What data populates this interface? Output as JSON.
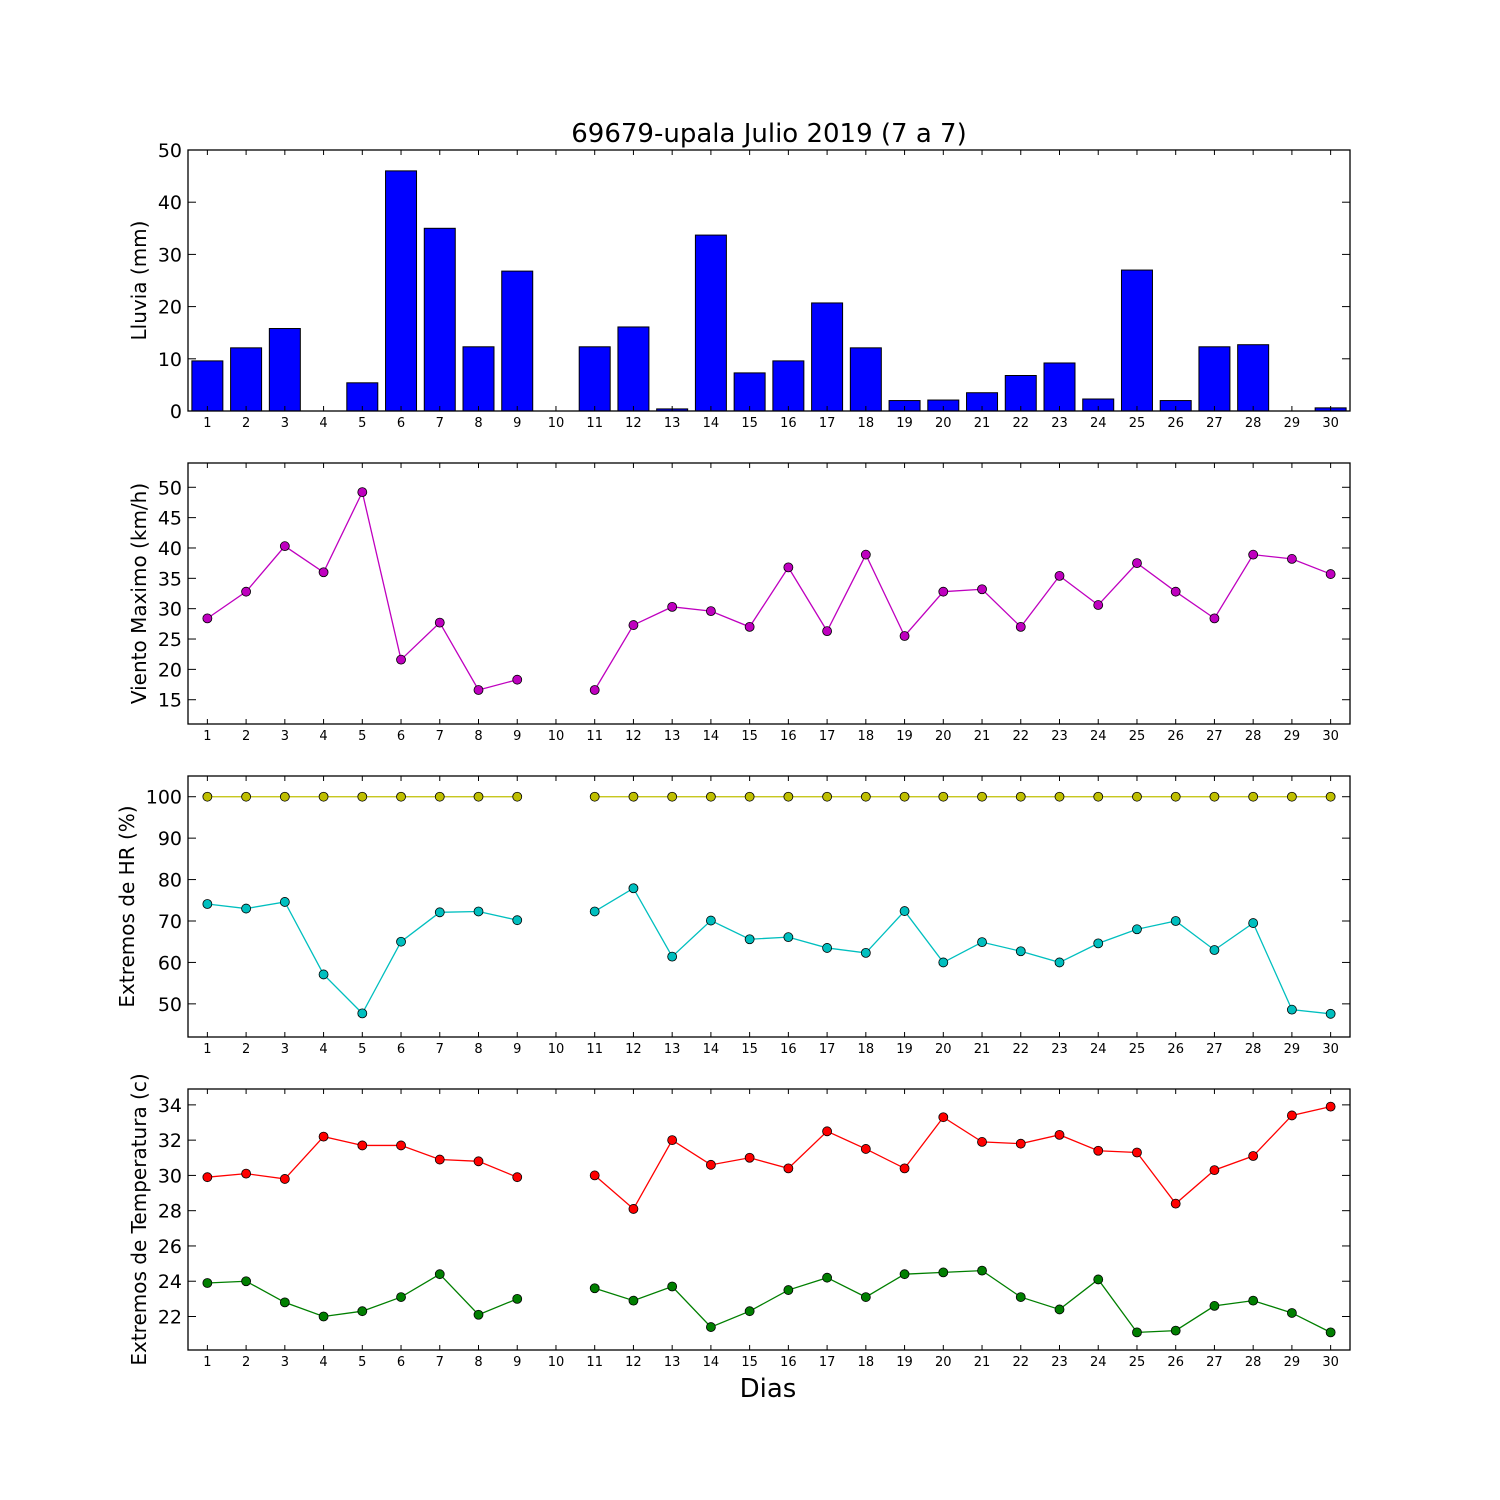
{
  "figure": {
    "title": "69679-upala Julio 2019  (7 a 7)",
    "xlabel": "Dias"
  },
  "chart_data": [
    {
      "type": "bar",
      "ylabel": "Lluvia (mm)",
      "categories": [
        "1",
        "2",
        "3",
        "4",
        "5",
        "6",
        "7",
        "8",
        "9",
        "10",
        "11",
        "12",
        "13",
        "14",
        "15",
        "16",
        "17",
        "18",
        "19",
        "20",
        "21",
        "22",
        "23",
        "24",
        "25",
        "26",
        "27",
        "28",
        "29",
        "30"
      ],
      "ylim": [
        0,
        50
      ],
      "yticks": [
        0,
        10,
        20,
        30,
        40,
        50
      ],
      "grid": false,
      "series": [
        {
          "color": "#0000ff",
          "values": [
            9.6,
            12.1,
            15.8,
            0,
            5.4,
            46.0,
            35.0,
            12.3,
            26.8,
            0,
            12.3,
            16.1,
            0.4,
            33.7,
            7.3,
            9.6,
            20.7,
            12.1,
            2.0,
            2.1,
            3.5,
            6.8,
            9.2,
            2.3,
            27.0,
            2.0,
            12.3,
            12.7,
            0,
            0.6
          ]
        }
      ]
    },
    {
      "type": "line",
      "ylabel": "Viento Maximo (km/h)",
      "categories": [
        "1",
        "2",
        "3",
        "4",
        "5",
        "6",
        "7",
        "8",
        "9",
        "10",
        "11",
        "12",
        "13",
        "14",
        "15",
        "16",
        "17",
        "18",
        "19",
        "20",
        "21",
        "22",
        "23",
        "24",
        "25",
        "26",
        "27",
        "28",
        "29",
        "30"
      ],
      "ylim": [
        11,
        54
      ],
      "yticks": [
        15,
        20,
        25,
        30,
        35,
        40,
        45,
        50
      ],
      "grid": false,
      "series": [
        {
          "color": "#bf00bf",
          "values": [
            28.4,
            32.8,
            40.3,
            36.0,
            49.2,
            21.6,
            27.7,
            16.6,
            18.3,
            null,
            16.6,
            27.3,
            30.3,
            29.6,
            27.0,
            36.8,
            26.3,
            38.9,
            25.5,
            32.8,
            33.2,
            27.0,
            35.4,
            30.6,
            37.5,
            32.8,
            28.4,
            38.9,
            38.2,
            35.7
          ]
        }
      ]
    },
    {
      "type": "line",
      "ylabel": "Extremos de HR (%)",
      "categories": [
        "1",
        "2",
        "3",
        "4",
        "5",
        "6",
        "7",
        "8",
        "9",
        "10",
        "11",
        "12",
        "13",
        "14",
        "15",
        "16",
        "17",
        "18",
        "19",
        "20",
        "21",
        "22",
        "23",
        "24",
        "25",
        "26",
        "27",
        "28",
        "29",
        "30"
      ],
      "ylim": [
        42,
        105
      ],
      "yticks": [
        50,
        60,
        70,
        80,
        90,
        100
      ],
      "grid": false,
      "series": [
        {
          "color": "#bfbf00",
          "values": [
            100,
            100,
            100,
            100,
            100,
            100,
            100,
            100,
            100,
            null,
            100,
            100,
            100,
            100,
            100,
            100,
            100,
            100,
            100,
            100,
            100,
            100,
            100,
            100,
            100,
            100,
            100,
            100,
            100,
            100
          ]
        },
        {
          "color": "#00bfbf",
          "values": [
            74.1,
            73.0,
            74.6,
            57.1,
            47.7,
            65.0,
            72.1,
            72.3,
            70.2,
            null,
            72.3,
            77.9,
            61.4,
            70.1,
            65.6,
            66.1,
            63.5,
            62.3,
            72.4,
            60.0,
            64.9,
            62.7,
            60.0,
            64.6,
            68.0,
            70.0,
            63.0,
            69.5,
            48.6,
            47.6
          ]
        }
      ]
    },
    {
      "type": "line",
      "ylabel": "Extremos de Temperatura (c)",
      "categories": [
        "1",
        "2",
        "3",
        "4",
        "5",
        "6",
        "7",
        "8",
        "9",
        "10",
        "11",
        "12",
        "13",
        "14",
        "15",
        "16",
        "17",
        "18",
        "19",
        "20",
        "21",
        "22",
        "23",
        "24",
        "25",
        "26",
        "27",
        "28",
        "29",
        "30"
      ],
      "ylim": [
        20.1,
        34.9
      ],
      "yticks": [
        22,
        24,
        26,
        28,
        30,
        32,
        34
      ],
      "grid": false,
      "series": [
        {
          "color": "#ff0000",
          "values": [
            29.9,
            30.1,
            29.8,
            32.2,
            31.7,
            31.7,
            30.9,
            30.8,
            29.9,
            null,
            30.0,
            28.1,
            32.0,
            30.6,
            31.0,
            30.4,
            32.5,
            31.5,
            30.4,
            33.3,
            31.9,
            31.8,
            32.3,
            31.4,
            31.3,
            28.4,
            30.3,
            31.1,
            33.4,
            33.9
          ]
        },
        {
          "color": "#007f00",
          "values": [
            23.9,
            24.0,
            22.8,
            22.0,
            22.3,
            23.1,
            24.4,
            22.1,
            23.0,
            null,
            23.6,
            22.9,
            23.7,
            21.4,
            22.3,
            23.5,
            24.2,
            23.1,
            24.4,
            24.5,
            24.6,
            23.1,
            22.4,
            24.1,
            21.1,
            21.2,
            22.6,
            22.9,
            22.2,
            21.1
          ]
        }
      ]
    }
  ]
}
